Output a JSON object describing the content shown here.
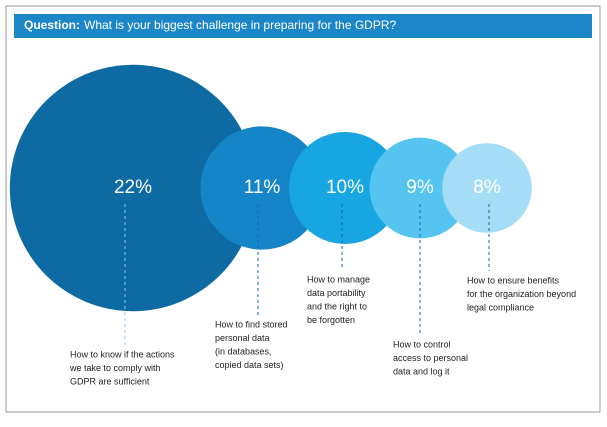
{
  "chart_data": {
    "type": "bubble",
    "title_lead": "Question:",
    "title": "What is your biggest challenge in preparing for the GDPR?",
    "categories": [
      [
        "How to know if the actions",
        "we take to comply with",
        "GDPR are sufficient"
      ],
      [
        "How to find stored",
        "personal data",
        "(in databases,",
        "copied data sets)"
      ],
      [
        "How to manage",
        "data portability",
        "and the right to",
        "be forgotten"
      ],
      [
        "How to control",
        "access to personal",
        "data and log it"
      ],
      [
        "How to ensure benefits",
        "for the organization beyond",
        "legal compliance"
      ]
    ],
    "values": [
      22,
      11,
      10,
      9,
      8
    ],
    "value_labels": [
      "22%",
      "11%",
      "10%",
      "9%",
      "8%"
    ],
    "colors": [
      "#0e6aa3",
      "#1685c8",
      "#17a6e2",
      "#55c4f0",
      "#a6ddf6"
    ]
  }
}
